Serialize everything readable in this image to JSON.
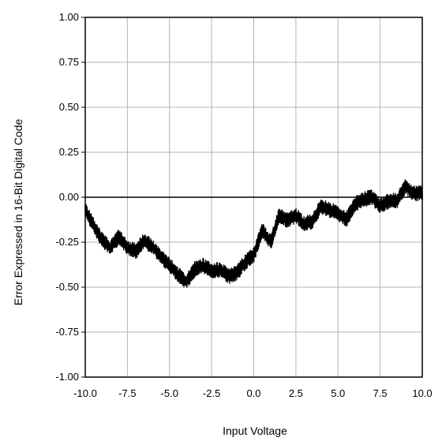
{
  "chart_data": {
    "type": "line",
    "xlabel": "Input Voltage",
    "ylabel": "Error Expressed in 16-Bit Digital Code",
    "xlim": [
      -10,
      10
    ],
    "ylim": [
      -1,
      1
    ],
    "grid": true,
    "zero_line": true,
    "x_ticks": [
      "-10.0",
      "-7.5",
      "-5.0",
      "-2.5",
      "0.0",
      "2.5",
      "5.0",
      "7.5",
      "10.0"
    ],
    "y_ticks": [
      "1.00",
      "0.75",
      "0.50",
      "0.25",
      "0.00",
      "-0.25",
      "-0.50",
      "-0.75",
      "-1.00"
    ],
    "series_color": "#000000",
    "noise_band": 0.045,
    "x": [
      -10.0,
      -9.5,
      -9.0,
      -8.5,
      -8.0,
      -7.5,
      -7.0,
      -6.5,
      -6.0,
      -5.5,
      -5.0,
      -4.5,
      -4.0,
      -3.5,
      -3.0,
      -2.5,
      -2.0,
      -1.5,
      -1.0,
      -0.5,
      0.0,
      0.5,
      1.0,
      1.5,
      2.0,
      2.5,
      3.0,
      3.5,
      4.0,
      4.5,
      5.0,
      5.5,
      6.0,
      6.5,
      7.0,
      7.5,
      8.0,
      8.5,
      9.0,
      9.5,
      10.0
    ],
    "y": [
      -0.07,
      -0.16,
      -0.24,
      -0.28,
      -0.22,
      -0.28,
      -0.3,
      -0.24,
      -0.28,
      -0.33,
      -0.38,
      -0.43,
      -0.47,
      -0.4,
      -0.38,
      -0.41,
      -0.4,
      -0.44,
      -0.42,
      -0.36,
      -0.32,
      -0.18,
      -0.25,
      -0.1,
      -0.13,
      -0.1,
      -0.15,
      -0.13,
      -0.05,
      -0.07,
      -0.09,
      -0.12,
      -0.04,
      -0.01,
      0.0,
      -0.05,
      -0.02,
      -0.02,
      0.06,
      0.02,
      0.03
    ]
  }
}
